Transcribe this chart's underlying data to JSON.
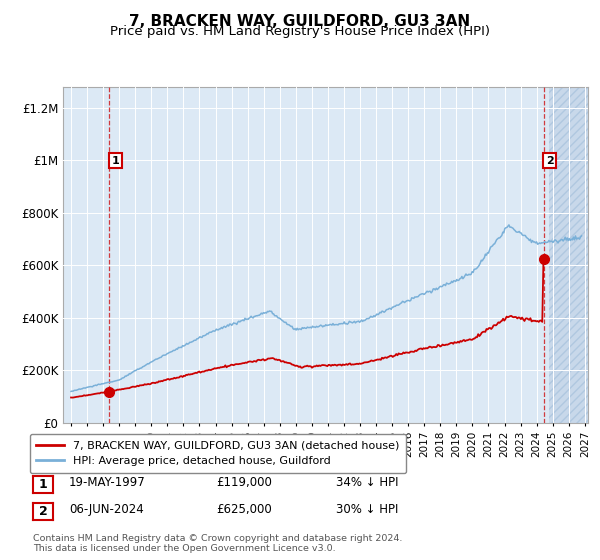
{
  "title": "7, BRACKEN WAY, GUILDFORD, GU3 3AN",
  "subtitle": "Price paid vs. HM Land Registry's House Price Index (HPI)",
  "title_fontsize": 11,
  "subtitle_fontsize": 9.5,
  "ylabel_ticks": [
    "£0",
    "£200K",
    "£400K",
    "£600K",
    "£800K",
    "£1M",
    "£1.2M"
  ],
  "ytick_values": [
    0,
    200000,
    400000,
    600000,
    800000,
    1000000,
    1200000
  ],
  "ylim": [
    0,
    1280000
  ],
  "xlim_start": 1994.5,
  "xlim_end": 2027.2,
  "hatch_start": 2024.75,
  "transaction1": {
    "year": 1997.38,
    "price": 119000,
    "label": "1"
  },
  "transaction2": {
    "year": 2024.43,
    "price": 625000,
    "label": "2"
  },
  "vline1_x": 1997.38,
  "vline2_x": 2024.43,
  "legend_line1": "7, BRACKEN WAY, GUILDFORD, GU3 3AN (detached house)",
  "legend_line2": "HPI: Average price, detached house, Guildford",
  "table_row1": [
    "1",
    "19-MAY-1997",
    "£119,000",
    "34% ↓ HPI"
  ],
  "table_row2": [
    "2",
    "06-JUN-2024",
    "£625,000",
    "30% ↓ HPI"
  ],
  "footer": "Contains HM Land Registry data © Crown copyright and database right 2024.\nThis data is licensed under the Open Government Licence v3.0.",
  "bg_color": "#dce9f5",
  "hatch_color": "#c8d8ea",
  "red_color": "#cc0000",
  "blue_color": "#7ab0d8",
  "grid_color": "#ffffff"
}
